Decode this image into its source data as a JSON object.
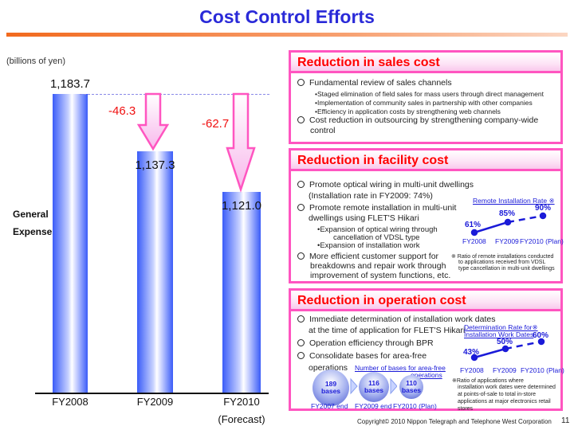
{
  "title": "Cost Control Efforts",
  "unit": "(billions of yen)",
  "side_label": [
    "General",
    "Expenses"
  ],
  "chart_data": {
    "type": "bar",
    "categories": [
      "FY2008",
      "FY2009",
      "FY2010"
    ],
    "category_sublabels": [
      "",
      "",
      "(Forecast)"
    ],
    "values": [
      1183.7,
      1137.3,
      1121.0
    ],
    "value_labels": [
      "1,183.7",
      "1,137.3",
      "1,121.0"
    ],
    "reductions": [
      "-46.3",
      "-62.7"
    ],
    "ylabel": "General Expenses",
    "unit": "(billions of yen)"
  },
  "sales": {
    "header": "Reduction in sales cost",
    "items": [
      "Fundamental review of sales channels",
      "Cost reduction in outsourcing by strengthening company-wide",
      "control"
    ],
    "subitems": [
      "•Staged elimination of field sales for mass users through direct management",
      "•Implementation of community sales in partnership with other companies",
      "•Efficiency in application costs by strengthening web channels"
    ]
  },
  "facility": {
    "header": "Reduction in facility cost",
    "lines": [
      "Promote optical wiring in multi-unit dwellings",
      "(Installation rate in FY2009: 74%)",
      "Promote remote installation in multi-unit",
      "dwellings using FLET'S Hikari",
      "•Expansion of optical wiring through",
      "cancellation of VDSL type",
      "•Expansion of installation work",
      "More efficient customer support for",
      "breakdowns and repair work through",
      "improvement of system functions, etc."
    ],
    "rate_title": "Remote Installation Rate ※",
    "rates": [
      "61%",
      "85%",
      "90%"
    ],
    "rate_values": [
      61,
      85,
      90
    ],
    "years": [
      "FY2008",
      "FY2009",
      "FY2010 (Plan)"
    ],
    "note": [
      "※ Ratio of remote installations conducted",
      "to applications received from VDSL",
      "type cancellation in multi-unit dwellings"
    ]
  },
  "operation": {
    "header": "Reduction in operation cost",
    "lines": [
      "Immediate determination of installation work dates",
      "at the time of application for FLET'S Hikari",
      "Operation efficiency through BPR",
      "Consolidate bases for area-free",
      "operations"
    ],
    "rate_title": [
      "Determination Rate for※",
      "Installation Work Dates"
    ],
    "rates": [
      "43%",
      "50%",
      "60%"
    ],
    "rate_values": [
      43,
      50,
      60
    ],
    "years": [
      "FY2008",
      "FY2009",
      "FY2010 (Plan)"
    ],
    "note": [
      "※Ratio of applications where",
      "installation work dates were determined",
      "at points-of-sale to total in-store",
      "applications at major electronics retail",
      "stores"
    ],
    "bases_title": [
      "Number of bases for area-free",
      "operations"
    ],
    "bases": [
      {
        "n": "189",
        "u": "bases",
        "label": "FY2007 end"
      },
      {
        "n": "116",
        "u": "bases",
        "label": "FY2009 end"
      },
      {
        "n": "110",
        "u": "bases",
        "label": "FY2010 (Plan)"
      }
    ]
  },
  "footer": {
    "copyright": "Copyright© 2010 Nippon Telegraph and Telephone West Corporation",
    "page": "11"
  }
}
